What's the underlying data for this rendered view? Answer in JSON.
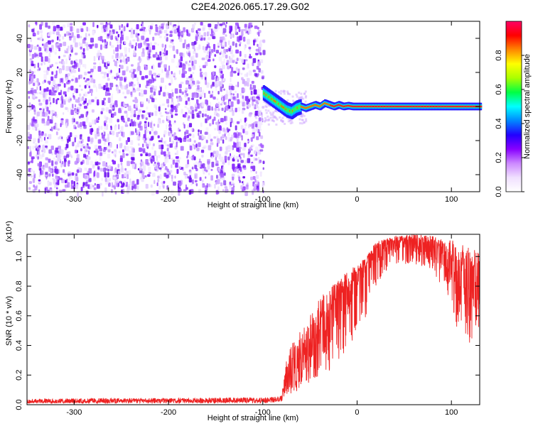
{
  "page_title": "C2E4.2026.065.17.29.G02",
  "chart_data": [
    {
      "type": "heatmap",
      "xlabel": "Height of straight line (km)",
      "ylabel": "Frequency (Hz)",
      "xlim": [
        -350,
        130
      ],
      "ylim": [
        -50,
        50
      ],
      "x_ticks": [
        -300,
        -200,
        -100,
        0,
        100
      ],
      "y_ticks": [
        -40,
        -20,
        0,
        20,
        40
      ],
      "noise_region_x": [
        -350,
        -100
      ],
      "signal_track": {
        "x": [
          -100,
          -95,
          -90,
          -85,
          -80,
          -75,
          -70,
          -65,
          -60,
          -55,
          -50,
          -45,
          -40,
          -35,
          -30,
          -25,
          -20,
          -15,
          -10,
          -5,
          0,
          10,
          130
        ],
        "y": [
          8,
          6,
          4,
          2,
          0,
          -2,
          -3,
          -1,
          0,
          -1,
          0,
          1,
          0,
          2,
          1,
          0,
          1,
          0,
          0.5,
          0,
          0,
          0,
          0
        ]
      },
      "colorbar": {
        "label": "Normalized spectral amplitude",
        "range": [
          0.0,
          1.0
        ],
        "ticks": [
          "0.0",
          "0.2",
          "0.4",
          "0.6",
          "0.8"
        ],
        "tick_values": [
          0.0,
          0.2,
          0.4,
          0.6,
          0.8
        ],
        "colors": [
          "#ffffff",
          "#f0e0ff",
          "#cc88ff",
          "#8800ff",
          "#2200ff",
          "#0088ff",
          "#00ffff",
          "#00ff44",
          "#aaff00",
          "#ffff00",
          "#ff8800",
          "#ff0000",
          "#ff0066"
        ]
      }
    },
    {
      "type": "line",
      "xlabel": "Height of straight line (km)",
      "ylabel": "SNR (10 * v/v)",
      "yscale_note": "(x10⁴)",
      "xlim": [
        -350,
        130
      ],
      "ylim": [
        0.0,
        1.15
      ],
      "x_ticks": [
        -300,
        -200,
        -100,
        0,
        100
      ],
      "y_ticks": [
        0.0,
        0.2,
        0.4,
        0.6,
        0.8,
        1.0
      ],
      "y_tick_labels": [
        "0.0",
        "0.2",
        "0.4",
        "0.6",
        "0.8",
        "1.0"
      ],
      "color": "#ee2222",
      "series": [
        {
          "name": "SNR",
          "x": [
            -350,
            -300,
            -250,
            -200,
            -150,
            -100,
            -80,
            -75,
            -70,
            -65,
            -60,
            -55,
            -50,
            -45,
            -40,
            -35,
            -30,
            -25,
            -20,
            -15,
            -10,
            -5,
            0,
            5,
            10,
            15,
            20,
            25,
            30,
            40,
            50,
            60,
            70,
            80,
            90,
            100,
            105,
            110,
            115,
            120,
            125,
            130
          ],
          "y": [
            0.02,
            0.02,
            0.025,
            0.03,
            0.025,
            0.03,
            0.03,
            0.15,
            0.2,
            0.25,
            0.3,
            0.35,
            0.35,
            0.45,
            0.5,
            0.55,
            0.6,
            0.65,
            0.7,
            0.72,
            0.78,
            0.8,
            0.88,
            0.92,
            0.95,
            1.0,
            1.05,
            1.08,
            1.1,
            1.1,
            1.1,
            1.12,
            1.1,
            1.1,
            1.05,
            1.0,
            0.8,
            0.7,
            0.9,
            0.85,
            0.8,
            0.75
          ]
        }
      ],
      "envelope_min": {
        "x": [
          -350,
          -100,
          -80,
          -75,
          -70,
          -60,
          -50,
          -40,
          -30,
          -20,
          -10,
          0,
          10,
          20,
          30,
          40,
          60,
          80,
          90,
          100,
          105,
          110,
          115,
          120,
          125,
          130
        ],
        "y": [
          0.01,
          0.01,
          0.02,
          0.06,
          0.05,
          0.1,
          0.15,
          0.2,
          0.22,
          0.3,
          0.35,
          0.45,
          0.6,
          0.8,
          0.9,
          0.95,
          0.95,
          0.9,
          0.8,
          0.7,
          0.5,
          0.45,
          0.4,
          0.4,
          0.45,
          0.5
        ]
      },
      "envelope_max": {
        "x": [
          -350,
          -100,
          -80,
          -75,
          -70,
          -60,
          -50,
          -40,
          -30,
          -20,
          -10,
          0,
          10,
          20,
          30,
          40,
          60,
          80,
          90,
          100,
          105,
          110,
          115,
          120,
          125,
          130
        ],
        "y": [
          0.04,
          0.05,
          0.06,
          0.3,
          0.4,
          0.5,
          0.6,
          0.72,
          0.78,
          0.85,
          0.9,
          0.95,
          1.0,
          1.1,
          1.12,
          1.14,
          1.15,
          1.14,
          1.12,
          1.12,
          1.1,
          1.1,
          1.08,
          1.05,
          1.05,
          1.03
        ]
      }
    }
  ]
}
